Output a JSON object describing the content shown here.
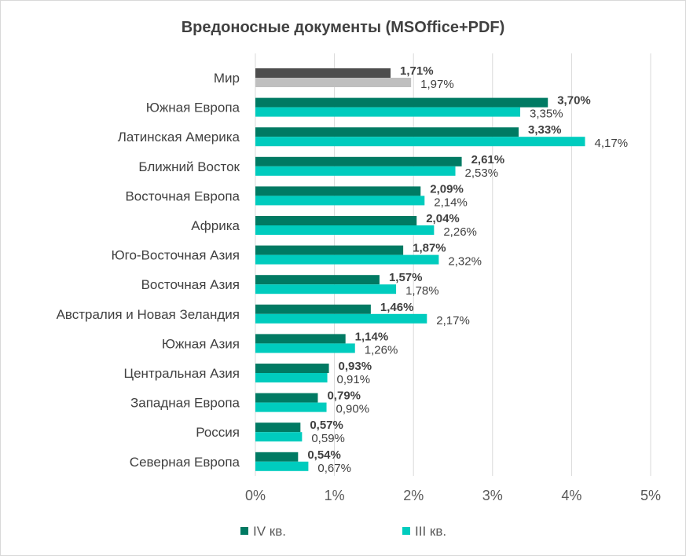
{
  "chart_data": {
    "type": "bar",
    "orientation": "horizontal",
    "title": "Вредоносные документы (MSOffice+PDF)",
    "categories": [
      "Мир",
      "Южная Европа",
      "Латинская Америка",
      "Ближний Восток",
      "Восточная Европа",
      "Африка",
      "Юго-Восточная Азия",
      "Восточная Азия",
      "Австралия и Новая Зеландия",
      "Южная Азия",
      "Центральная Азия",
      "Западная Европа",
      "Россия",
      "Северная Европа"
    ],
    "series": [
      {
        "name": "IV кв.",
        "values": [
          1.71,
          3.7,
          3.33,
          2.61,
          2.09,
          2.04,
          1.87,
          1.57,
          1.46,
          1.14,
          0.93,
          0.79,
          0.57,
          0.54
        ],
        "labels": [
          "1,71%",
          "3,70%",
          "3,33%",
          "2,61%",
          "2,09%",
          "2,04%",
          "1,87%",
          "1,57%",
          "1,46%",
          "1,14%",
          "0,93%",
          "0,79%",
          "0,57%",
          "0,54%"
        ],
        "color": "#007a63",
        "highlight_color": "#4d4d4d"
      },
      {
        "name": "III кв.",
        "values": [
          1.97,
          3.35,
          4.17,
          2.53,
          2.14,
          2.26,
          2.32,
          1.78,
          2.17,
          1.26,
          0.91,
          0.9,
          0.59,
          0.67
        ],
        "labels": [
          "1,97%",
          "3,35%",
          "4,17%",
          "2,53%",
          "2,14%",
          "2,26%",
          "2,32%",
          "1,78%",
          "2,17%",
          "1,26%",
          "0,91%",
          "0,90%",
          "0,59%",
          "0,67%"
        ],
        "color": "#00ccbe",
        "highlight_color": "#bfbfbf"
      }
    ],
    "x_ticks": [
      "0%",
      "1%",
      "2%",
      "3%",
      "4%",
      "5%"
    ],
    "xlim": [
      0,
      5
    ],
    "grid": true,
    "legend": "bottom"
  }
}
